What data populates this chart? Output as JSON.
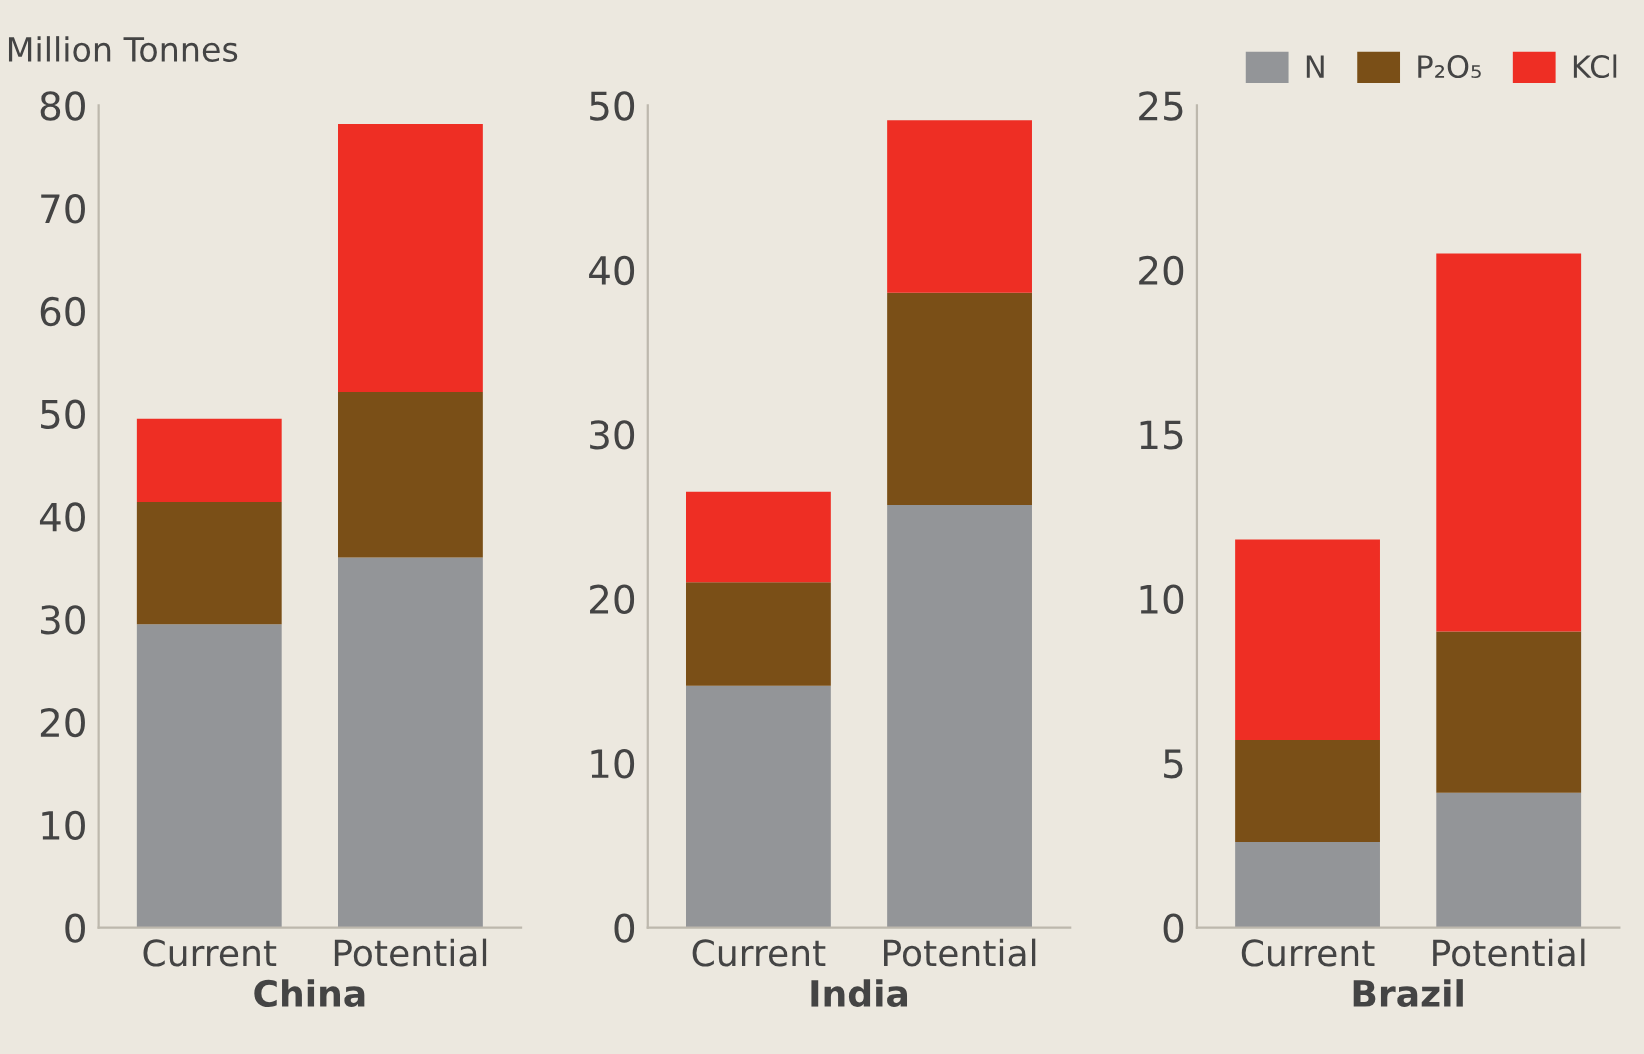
{
  "chart_data": [
    {
      "type": "bar",
      "stacked": true,
      "ylabel": "Million Tonnes",
      "xlabel": "China",
      "categories": [
        "Current",
        "Potential"
      ],
      "ylim": [
        0,
        80
      ],
      "yticks": [
        0,
        10,
        20,
        30,
        40,
        50,
        60,
        70,
        80
      ],
      "grid": false,
      "legend": false,
      "series": [
        {
          "color": "#939598",
          "values": [
            29.5,
            36
          ]
        },
        {
          "color": "#7a4f17",
          "values": [
            11.9,
            16.1
          ]
        },
        {
          "color": "#ee2e24",
          "values": [
            8.1,
            26.1
          ]
        }
      ]
    },
    {
      "type": "bar",
      "stacked": true,
      "xlabel": "India",
      "categories": [
        "Current",
        "Potential"
      ],
      "ylim": [
        0,
        50
      ],
      "yticks": [
        0,
        10,
        20,
        30,
        40,
        50
      ],
      "grid": false,
      "legend": false,
      "series": [
        {
          "color": "#939598",
          "values": [
            14.7,
            25.7
          ]
        },
        {
          "color": "#7a4f17",
          "values": [
            6.3,
            12.9
          ]
        },
        {
          "color": "#ee2e24",
          "values": [
            5.5,
            10.5
          ]
        }
      ]
    },
    {
      "type": "bar",
      "stacked": true,
      "xlabel": "Brazil",
      "categories": [
        "Current",
        "Potential"
      ],
      "ylim": [
        0,
        25
      ],
      "yticks": [
        0,
        5,
        10,
        15,
        20,
        25
      ],
      "grid": false,
      "legend": "top right",
      "series": [
        {
          "name": "N",
          "color": "#939598",
          "values": [
            2.6,
            4.1
          ]
        },
        {
          "name": "P₂O₅",
          "color": "#7a4f17",
          "values": [
            3.1,
            4.9
          ]
        },
        {
          "name": "KCl",
          "color": "#ee2e24",
          "values": [
            6.1,
            11.5
          ]
        }
      ]
    }
  ]
}
